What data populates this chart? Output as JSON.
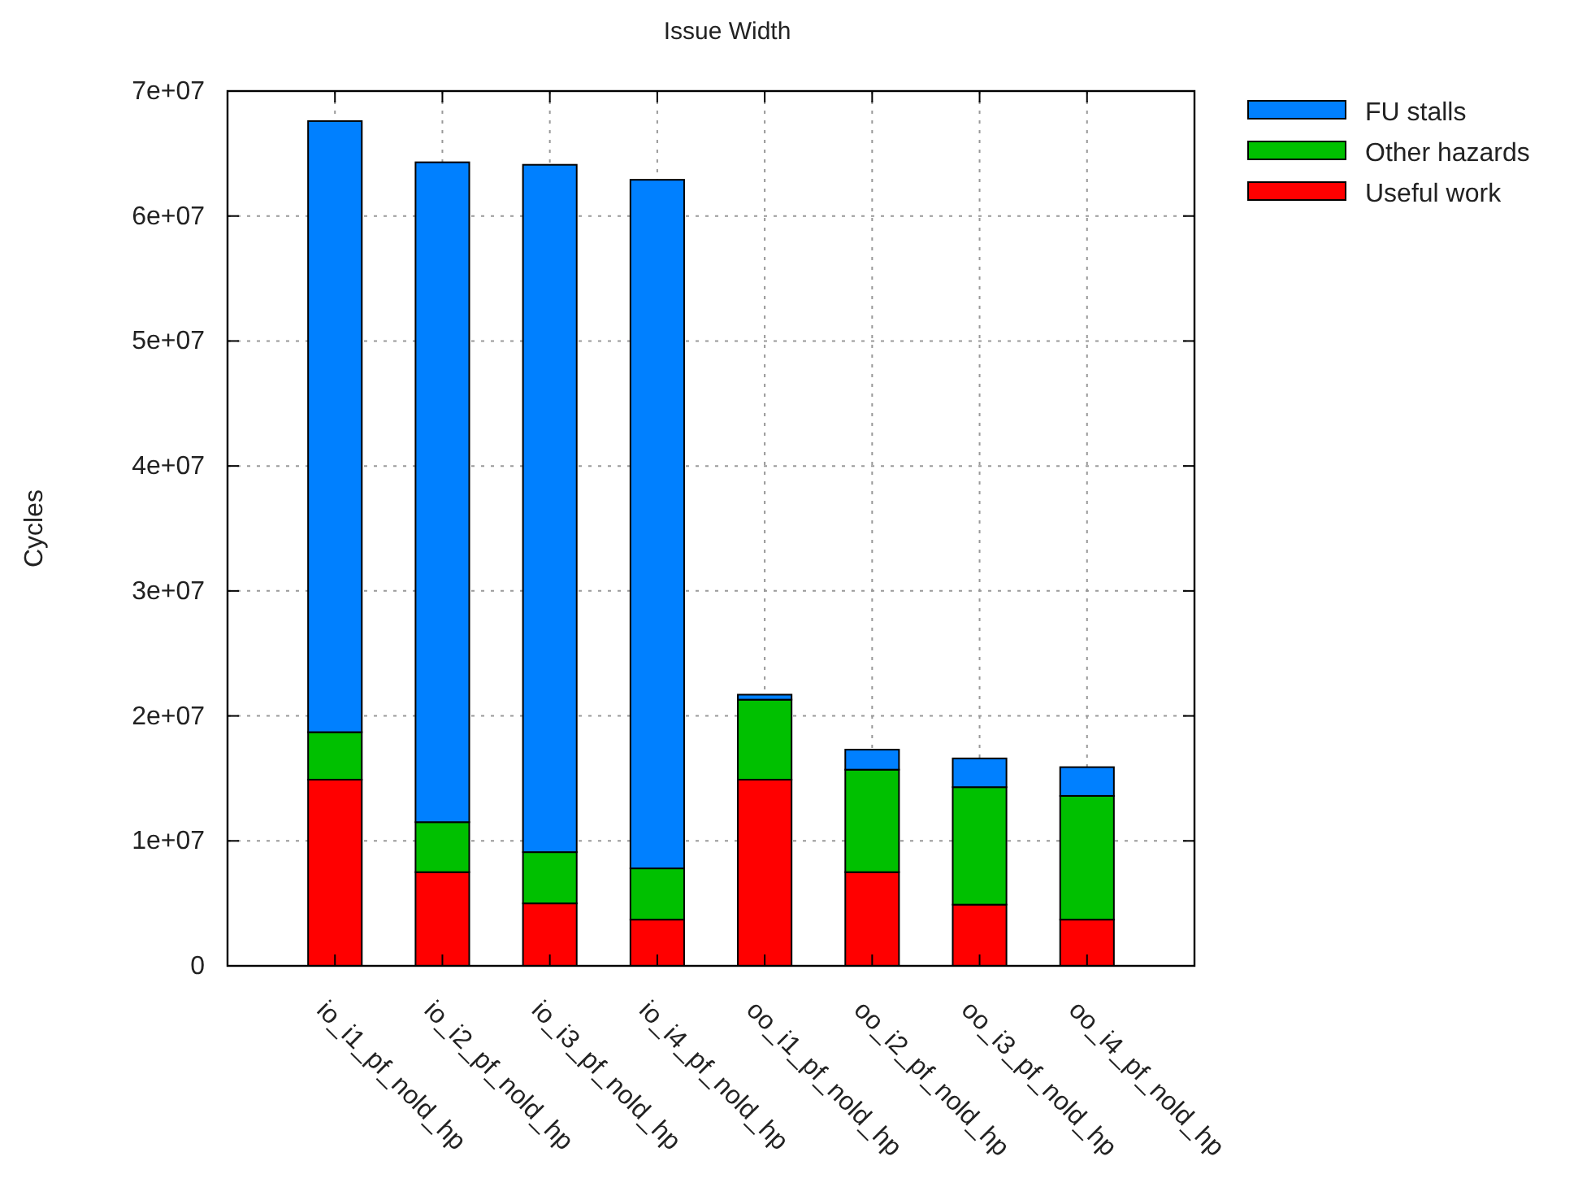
{
  "chart_data": {
    "type": "bar",
    "title": "Issue Width",
    "ylabel": "Cycles",
    "stacked": true,
    "categories": [
      "io_i1_pf_nold_hp",
      "io_i2_pf_nold_hp",
      "io_i3_pf_nold_hp",
      "io_i4_pf_nold_hp",
      "oo_i1_pf_nold_hp",
      "oo_i2_pf_nold_hp",
      "oo_i3_pf_nold_hp",
      "oo_i4_pf_nold_hp"
    ],
    "series": [
      {
        "name": "Useful work",
        "color": "#ff0000",
        "values": [
          14900000,
          7500000,
          5000000,
          3700000,
          14900000,
          7500000,
          4900000,
          3700000
        ]
      },
      {
        "name": "Other hazards",
        "color": "#00c000",
        "values": [
          3800000,
          4000000,
          4100000,
          4100000,
          6400000,
          8200000,
          9400000,
          9900000
        ]
      },
      {
        "name": "FU stalls",
        "color": "#0080ff",
        "values": [
          48900000,
          52800000,
          55000000,
          55100000,
          400000,
          1600000,
          2300000,
          2300000
        ]
      }
    ],
    "ylim": [
      0,
      70000000
    ],
    "yticks": [
      0,
      {
        "value": 10000000,
        "label": "1e+07"
      },
      {
        "value": 20000000,
        "label": "2e+07"
      },
      {
        "value": 30000000,
        "label": "3e+07"
      },
      {
        "value": 40000000,
        "label": "4e+07"
      },
      {
        "value": 50000000,
        "label": "5e+07"
      },
      {
        "value": 60000000,
        "label": "6e+07"
      },
      {
        "value": 70000000,
        "label": "7e+07"
      }
    ],
    "grid": true,
    "legend": "top right"
  }
}
